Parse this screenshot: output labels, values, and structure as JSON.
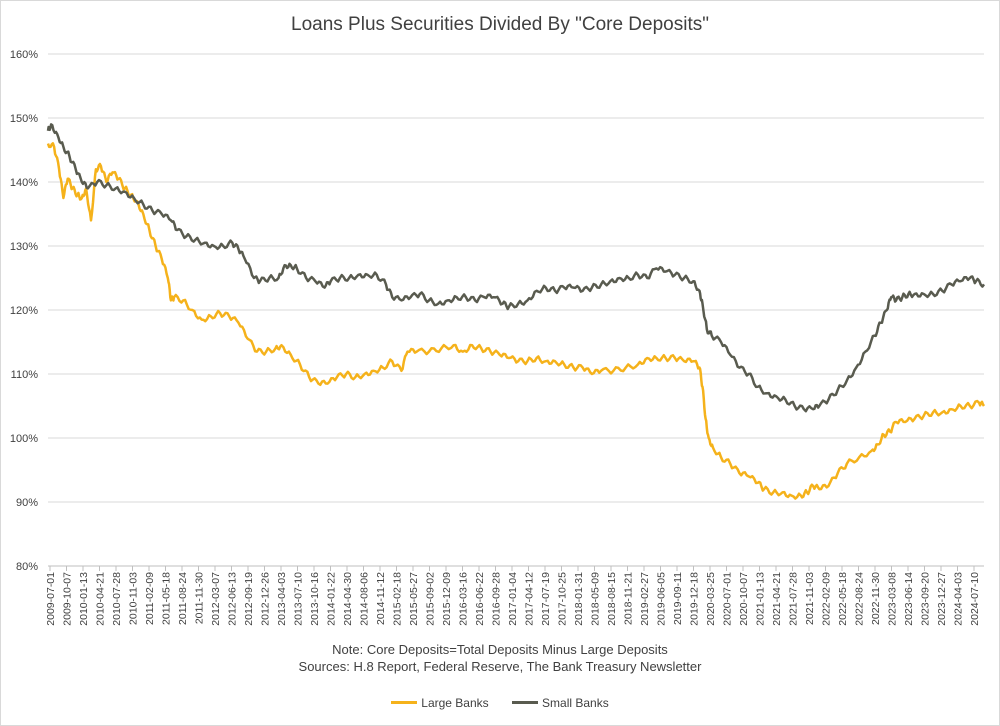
{
  "chart_data": {
    "type": "line",
    "title": "Loans Plus Securities Divided By \"Core Deposits\"",
    "note": "Note: Core Deposits=Total Deposits Minus Large Deposits",
    "sources": "Sources: H.8 Report, Federal Reserve, The Bank Treasury Newsletter",
    "xlabel": "",
    "ylabel": "",
    "ylim": [
      80,
      160
    ],
    "y_ticks": [
      "80%",
      "90%",
      "100%",
      "110%",
      "120%",
      "130%",
      "140%",
      "150%",
      "160%"
    ],
    "x_tick_labels": [
      "2009-07-01",
      "2009-10-07",
      "2010-01-13",
      "2010-04-21",
      "2010-07-28",
      "2010-11-03",
      "2011-02-09",
      "2011-05-18",
      "2011-08-24",
      "2011-11-30",
      "2012-03-07",
      "2012-06-13",
      "2012-09-19",
      "2012-12-26",
      "2013-04-03",
      "2013-07-10",
      "2013-10-16",
      "2014-01-22",
      "2014-04-30",
      "2014-08-06",
      "2014-11-12",
      "2015-02-18",
      "2015-05-27",
      "2015-09-02",
      "2015-12-09",
      "2016-03-16",
      "2016-06-22",
      "2016-09-28",
      "2017-01-04",
      "2017-04-12",
      "2017-07-19",
      "2017-10-25",
      "2018-01-31",
      "2018-05-09",
      "2018-08-15",
      "2018-11-21",
      "2019-02-27",
      "2019-06-05",
      "2019-09-11",
      "2019-12-18",
      "2020-03-25",
      "2020-07-01",
      "2020-10-07",
      "2021-01-13",
      "2021-04-21",
      "2021-07-28",
      "2021-11-03",
      "2022-02-09",
      "2022-05-18",
      "2022-08-24",
      "2022-11-30",
      "2023-03-08",
      "2023-06-14",
      "2023-09-20",
      "2023-12-27",
      "2024-04-03",
      "2024-07-10"
    ],
    "x_range": [
      2009.5,
      2024.73
    ],
    "series": [
      {
        "name": "Large Banks",
        "color": "#f5b21b",
        "points": [
          [
            2009.5,
            146
          ],
          [
            2009.6,
            145.5
          ],
          [
            2009.68,
            142
          ],
          [
            2009.75,
            137.5
          ],
          [
            2009.82,
            140.5
          ],
          [
            2009.9,
            139
          ],
          [
            2009.98,
            138
          ],
          [
            2010.05,
            137.5
          ],
          [
            2010.12,
            139
          ],
          [
            2010.2,
            134
          ],
          [
            2010.28,
            142
          ],
          [
            2010.36,
            142.5
          ],
          [
            2010.45,
            140
          ],
          [
            2010.55,
            141.5
          ],
          [
            2010.65,
            140.5
          ],
          [
            2010.75,
            139
          ],
          [
            2010.85,
            138
          ],
          [
            2010.95,
            137
          ],
          [
            2011.05,
            135
          ],
          [
            2011.15,
            132.5
          ],
          [
            2011.25,
            130
          ],
          [
            2011.35,
            128
          ],
          [
            2011.45,
            125
          ],
          [
            2011.5,
            121.5
          ],
          [
            2011.55,
            122
          ],
          [
            2011.7,
            121.5
          ],
          [
            2011.85,
            120
          ],
          [
            2012.0,
            118.5
          ],
          [
            2012.15,
            119
          ],
          [
            2012.3,
            119.5
          ],
          [
            2012.45,
            119
          ],
          [
            2012.6,
            118
          ],
          [
            2012.75,
            115.5
          ],
          [
            2012.9,
            113.5
          ],
          [
            2013.05,
            113.5
          ],
          [
            2013.2,
            114
          ],
          [
            2013.3,
            114.5
          ],
          [
            2013.45,
            113
          ],
          [
            2013.6,
            111.5
          ],
          [
            2013.75,
            109.5
          ],
          [
            2013.9,
            108.5
          ],
          [
            2014.05,
            108.5
          ],
          [
            2014.2,
            109.5
          ],
          [
            2014.35,
            110
          ],
          [
            2014.5,
            109.5
          ],
          [
            2014.65,
            110
          ],
          [
            2014.8,
            110.5
          ],
          [
            2014.95,
            111
          ],
          [
            2015.1,
            112
          ],
          [
            2015.25,
            110.5
          ],
          [
            2015.35,
            113.5
          ],
          [
            2015.5,
            113.5
          ],
          [
            2015.7,
            113.5
          ],
          [
            2015.9,
            114
          ],
          [
            2016.1,
            114.5
          ],
          [
            2016.25,
            113.5
          ],
          [
            2016.4,
            114.5
          ],
          [
            2016.55,
            114
          ],
          [
            2016.7,
            113.5
          ],
          [
            2016.85,
            113
          ],
          [
            2017.0,
            112.5
          ],
          [
            2017.15,
            112
          ],
          [
            2017.3,
            112
          ],
          [
            2017.45,
            112.5
          ],
          [
            2017.6,
            112
          ],
          [
            2017.75,
            112
          ],
          [
            2017.9,
            111.5
          ],
          [
            2018.05,
            111
          ],
          [
            2018.2,
            111
          ],
          [
            2018.35,
            110
          ],
          [
            2018.5,
            110.5
          ],
          [
            2018.7,
            110.5
          ],
          [
            2018.9,
            111
          ],
          [
            2019.1,
            111.5
          ],
          [
            2019.25,
            112.5
          ],
          [
            2019.4,
            112.5
          ],
          [
            2019.55,
            112.5
          ],
          [
            2019.7,
            112.5
          ],
          [
            2019.85,
            112
          ],
          [
            2020.0,
            112
          ],
          [
            2020.1,
            111
          ],
          [
            2020.15,
            108
          ],
          [
            2020.2,
            103
          ],
          [
            2020.25,
            100
          ],
          [
            2020.32,
            98.5
          ],
          [
            2020.45,
            97
          ],
          [
            2020.6,
            96
          ],
          [
            2020.75,
            94.5
          ],
          [
            2020.9,
            94
          ],
          [
            2021.05,
            93
          ],
          [
            2021.15,
            92
          ],
          [
            2021.3,
            91.5
          ],
          [
            2021.45,
            91.5
          ],
          [
            2021.6,
            91
          ],
          [
            2021.75,
            91
          ],
          [
            2021.85,
            91.5
          ],
          [
            2021.95,
            92.5
          ],
          [
            2022.05,
            92
          ],
          [
            2022.2,
            92.5
          ],
          [
            2022.35,
            94.5
          ],
          [
            2022.5,
            96
          ],
          [
            2022.7,
            97
          ],
          [
            2022.9,
            98
          ],
          [
            2023.0,
            99
          ],
          [
            2023.1,
            100.5
          ],
          [
            2023.2,
            101
          ],
          [
            2023.3,
            102.5
          ],
          [
            2023.45,
            102.5
          ],
          [
            2023.6,
            103
          ],
          [
            2023.75,
            103.5
          ],
          [
            2023.9,
            104
          ],
          [
            2024.05,
            104
          ],
          [
            2024.2,
            104.5
          ],
          [
            2024.35,
            105
          ],
          [
            2024.5,
            105
          ],
          [
            2024.65,
            105.5
          ],
          [
            2024.73,
            105
          ]
        ]
      },
      {
        "name": "Small Banks",
        "color": "#595b4f",
        "points": [
          [
            2009.5,
            148
          ],
          [
            2009.55,
            149
          ],
          [
            2009.65,
            147.5
          ],
          [
            2009.75,
            145.5
          ],
          [
            2009.85,
            144
          ],
          [
            2009.95,
            142
          ],
          [
            2010.05,
            140
          ],
          [
            2010.15,
            139
          ],
          [
            2010.3,
            140
          ],
          [
            2010.45,
            139.5
          ],
          [
            2010.6,
            139
          ],
          [
            2010.75,
            138.5
          ],
          [
            2010.9,
            137.5
          ],
          [
            2011.05,
            136.5
          ],
          [
            2011.2,
            135.5
          ],
          [
            2011.35,
            135
          ],
          [
            2011.5,
            134
          ],
          [
            2011.6,
            132.5
          ],
          [
            2011.75,
            131.5
          ],
          [
            2011.9,
            131
          ],
          [
            2012.05,
            130.5
          ],
          [
            2012.2,
            130
          ],
          [
            2012.35,
            130
          ],
          [
            2012.5,
            130.5
          ],
          [
            2012.6,
            129.5
          ],
          [
            2012.7,
            128
          ],
          [
            2012.85,
            125
          ],
          [
            2012.95,
            124.5
          ],
          [
            2013.1,
            125
          ],
          [
            2013.25,
            125
          ],
          [
            2013.35,
            127
          ],
          [
            2013.45,
            127
          ],
          [
            2013.55,
            126.5
          ],
          [
            2013.7,
            125
          ],
          [
            2013.85,
            124.5
          ],
          [
            2014.0,
            123.5
          ],
          [
            2014.1,
            124.5
          ],
          [
            2014.25,
            125
          ],
          [
            2014.4,
            125
          ],
          [
            2014.55,
            125.5
          ],
          [
            2014.7,
            125.5
          ],
          [
            2014.85,
            125.5
          ],
          [
            2015.0,
            124
          ],
          [
            2015.1,
            122
          ],
          [
            2015.25,
            121.5
          ],
          [
            2015.4,
            122
          ],
          [
            2015.55,
            122.5
          ],
          [
            2015.7,
            121.5
          ],
          [
            2015.85,
            121
          ],
          [
            2016.0,
            121.5
          ],
          [
            2016.15,
            122
          ],
          [
            2016.3,
            122
          ],
          [
            2016.45,
            121.5
          ],
          [
            2016.6,
            122
          ],
          [
            2016.75,
            122
          ],
          [
            2016.9,
            121
          ],
          [
            2017.0,
            120.5
          ],
          [
            2017.15,
            121
          ],
          [
            2017.3,
            121.5
          ],
          [
            2017.45,
            123
          ],
          [
            2017.6,
            123.5
          ],
          [
            2017.75,
            123
          ],
          [
            2017.9,
            123.5
          ],
          [
            2018.05,
            123.5
          ],
          [
            2018.2,
            123
          ],
          [
            2018.35,
            123.5
          ],
          [
            2018.5,
            124
          ],
          [
            2018.65,
            124.5
          ],
          [
            2018.8,
            125
          ],
          [
            2018.95,
            125
          ],
          [
            2019.1,
            125.5
          ],
          [
            2019.25,
            125
          ],
          [
            2019.4,
            126.5
          ],
          [
            2019.55,
            126
          ],
          [
            2019.7,
            125.5
          ],
          [
            2019.85,
            125
          ],
          [
            2020.0,
            124.5
          ],
          [
            2020.1,
            123
          ],
          [
            2020.15,
            121
          ],
          [
            2020.22,
            117
          ],
          [
            2020.3,
            116
          ],
          [
            2020.45,
            115
          ],
          [
            2020.6,
            113
          ],
          [
            2020.75,
            111
          ],
          [
            2020.9,
            110
          ],
          [
            2021.05,
            108
          ],
          [
            2021.2,
            107
          ],
          [
            2021.35,
            106.5
          ],
          [
            2021.5,
            106
          ],
          [
            2021.65,
            105
          ],
          [
            2021.8,
            104.5
          ],
          [
            2021.95,
            104.5
          ],
          [
            2022.05,
            105
          ],
          [
            2022.2,
            106
          ],
          [
            2022.35,
            107.5
          ],
          [
            2022.5,
            109
          ],
          [
            2022.65,
            111
          ],
          [
            2022.8,
            113.5
          ],
          [
            2022.95,
            116
          ],
          [
            2023.05,
            118
          ],
          [
            2023.15,
            120
          ],
          [
            2023.22,
            122
          ],
          [
            2023.3,
            121.5
          ],
          [
            2023.4,
            122
          ],
          [
            2023.5,
            122.5
          ],
          [
            2023.6,
            122.5
          ],
          [
            2023.75,
            122.5
          ],
          [
            2023.9,
            122.5
          ],
          [
            2024.05,
            123
          ],
          [
            2024.2,
            124
          ],
          [
            2024.35,
            124.5
          ],
          [
            2024.5,
            125
          ],
          [
            2024.6,
            124.5
          ],
          [
            2024.73,
            124
          ]
        ]
      }
    ],
    "legend_position": "bottom"
  }
}
